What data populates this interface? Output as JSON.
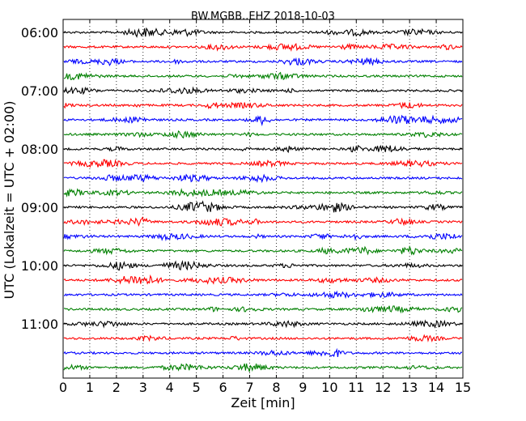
{
  "chart_data": {
    "type": "line",
    "title": "BW.MGBB..EHZ 2018-10-03",
    "xlabel": "Zeit  [min]",
    "ylabel": "UTC (Lokalzeit = UTC + 02:00)",
    "xlim": [
      0,
      15
    ],
    "x_ticks": [
      "0",
      "1",
      "2",
      "3",
      "4",
      "5",
      "6",
      "7",
      "8",
      "9",
      "10",
      "11",
      "12",
      "13",
      "14",
      "15"
    ],
    "y_ticks": [
      "06:00",
      "07:00",
      "08:00",
      "09:00",
      "10:00",
      "11:00"
    ],
    "grid": "vertical dotted",
    "trace_interval_min": 15,
    "colors": [
      "#000000",
      "#ff0000",
      "#0000ff",
      "#008000"
    ],
    "traces": [
      {
        "start": "06:00",
        "color": "#000000"
      },
      {
        "start": "06:15",
        "color": "#ff0000"
      },
      {
        "start": "06:30",
        "color": "#0000ff"
      },
      {
        "start": "06:45",
        "color": "#008000"
      },
      {
        "start": "07:00",
        "color": "#000000"
      },
      {
        "start": "07:15",
        "color": "#ff0000"
      },
      {
        "start": "07:30",
        "color": "#0000ff"
      },
      {
        "start": "07:45",
        "color": "#008000"
      },
      {
        "start": "08:00",
        "color": "#000000"
      },
      {
        "start": "08:15",
        "color": "#ff0000"
      },
      {
        "start": "08:30",
        "color": "#0000ff"
      },
      {
        "start": "08:45",
        "color": "#008000"
      },
      {
        "start": "09:00",
        "color": "#000000"
      },
      {
        "start": "09:15",
        "color": "#ff0000"
      },
      {
        "start": "09:30",
        "color": "#0000ff"
      },
      {
        "start": "09:45",
        "color": "#008000"
      },
      {
        "start": "10:00",
        "color": "#000000"
      },
      {
        "start": "10:15",
        "color": "#ff0000"
      },
      {
        "start": "10:30",
        "color": "#0000ff"
      },
      {
        "start": "10:45",
        "color": "#008000"
      },
      {
        "start": "11:00",
        "color": "#000000"
      },
      {
        "start": "11:15",
        "color": "#ff0000"
      },
      {
        "start": "11:30",
        "color": "#0000ff"
      },
      {
        "start": "11:45",
        "color": "#008000"
      }
    ]
  }
}
